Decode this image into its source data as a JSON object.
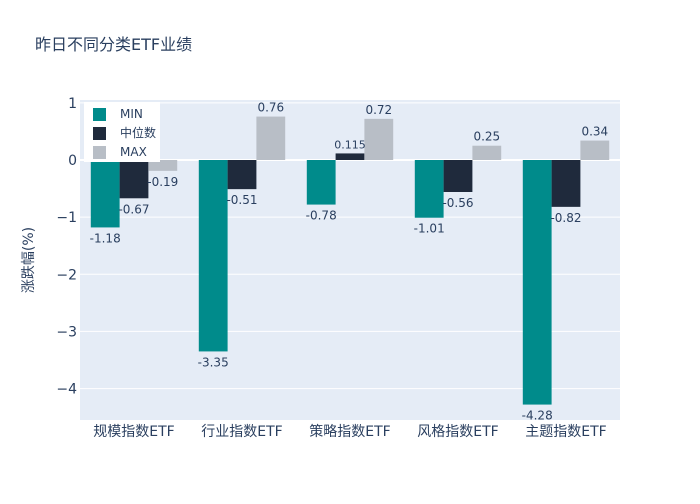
{
  "chart_data": {
    "type": "bar",
    "title": "昨日不同分类ETF业绩",
    "ylabel": "涨跌幅(%)",
    "xlabel": "",
    "categories": [
      "规模指数ETF",
      "行业指数ETF",
      "策略指数ETF",
      "风格指数ETF",
      "主题指数ETF"
    ],
    "series": [
      {
        "name": "MIN",
        "color": "#008b8b",
        "values": [
          -1.18,
          -3.35,
          -0.78,
          -1.01,
          -4.28
        ]
      },
      {
        "name": "中位数",
        "color": "#1f2a3c",
        "values": [
          -0.67,
          -0.51,
          0.115,
          -0.56,
          -0.82
        ]
      },
      {
        "name": "MAX",
        "color": "#b8bec6",
        "values": [
          -0.19,
          0.76,
          0.72,
          0.25,
          0.34
        ]
      }
    ],
    "ylim": [
      -4.55,
      1.05
    ],
    "yticks": [
      1,
      0,
      -1,
      -2,
      -3,
      -4
    ],
    "ytick_labels": [
      "1",
      "0",
      "−1",
      "−2",
      "−3",
      "−4"
    ],
    "grid": true,
    "legend_position": "top-left",
    "plot_background": "#e5ecf6"
  }
}
